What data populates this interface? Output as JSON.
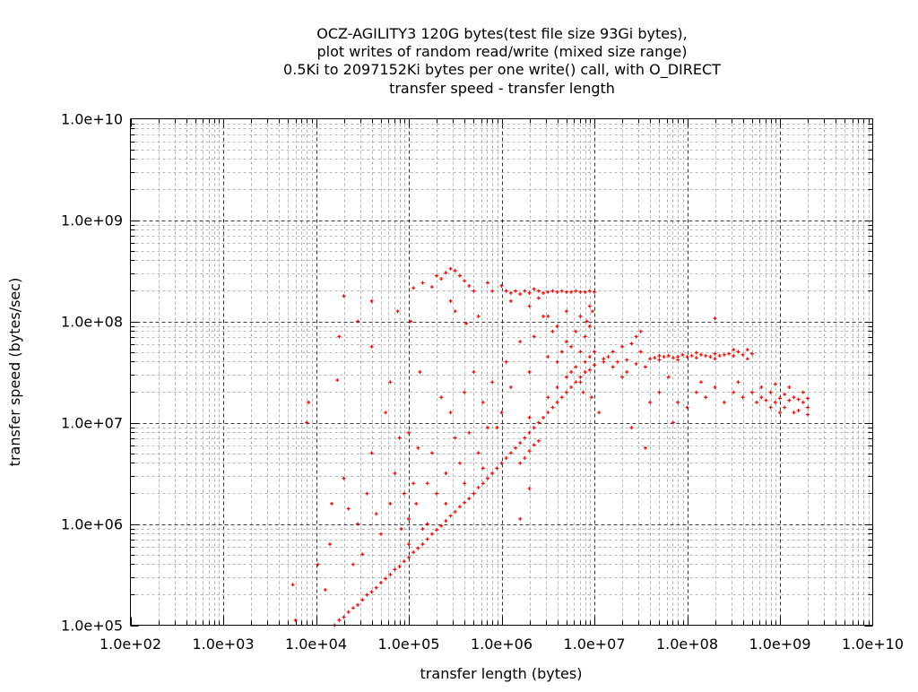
{
  "chart_data": {
    "type": "scatter",
    "title_lines": [
      "OCZ-AGILITY3 120G bytes(test file size 93Gi bytes),",
      "plot writes of random read/write (mixed size range)",
      "0.5Ki to 2097152Ki bytes per one write() call, with O_DIRECT",
      "transfer speed - transfer length"
    ],
    "xlabel": "transfer length (bytes)",
    "ylabel": "transfer speed (bytes/sec)",
    "x_scale": "log10",
    "y_scale": "log10",
    "xlim": [
      100.0,
      10000000000.0
    ],
    "ylim": [
      100000.0,
      10000000000.0
    ],
    "x_ticks": [
      "1.0e+02",
      "1.0e+03",
      "1.0e+04",
      "1.0e+05",
      "1.0e+06",
      "1.0e+07",
      "1.0e+08",
      "1.0e+09",
      "1.0e+10"
    ],
    "y_ticks": [
      "1.0e+05",
      "1.0e+06",
      "1.0e+07",
      "1.0e+08",
      "1.0e+09",
      "1.0e+10"
    ],
    "grid": true,
    "marker": "plus",
    "color": "#ff0000",
    "point_format": "[log10(transfer length), log10(transfer speed)] (approximate, sampled)",
    "points": [
      [
        4.2,
        5.0
      ],
      [
        4.3,
        5.08
      ],
      [
        4.4,
        5.17
      ],
      [
        4.5,
        5.25
      ],
      [
        4.6,
        5.33
      ],
      [
        4.7,
        5.42
      ],
      [
        4.8,
        5.5
      ],
      [
        4.9,
        5.58
      ],
      [
        5.0,
        5.67
      ],
      [
        5.1,
        5.76
      ],
      [
        5.2,
        5.85
      ],
      [
        5.3,
        5.94
      ],
      [
        5.4,
        6.03
      ],
      [
        5.5,
        6.12
      ],
      [
        5.6,
        6.21
      ],
      [
        5.7,
        6.3
      ],
      [
        5.8,
        6.4
      ],
      [
        5.9,
        6.5
      ],
      [
        6.0,
        6.6
      ],
      [
        6.1,
        6.7
      ],
      [
        6.2,
        6.8
      ],
      [
        6.3,
        6.9
      ],
      [
        6.4,
        7.0
      ],
      [
        6.5,
        7.1
      ],
      [
        6.6,
        7.2
      ],
      [
        6.7,
        7.3
      ],
      [
        6.8,
        7.4
      ],
      [
        6.9,
        7.5
      ],
      [
        7.0,
        7.57
      ],
      [
        7.1,
        7.63
      ],
      [
        4.25,
        5.05
      ],
      [
        4.35,
        5.13
      ],
      [
        4.45,
        5.2
      ],
      [
        4.55,
        5.3
      ],
      [
        4.65,
        5.37
      ],
      [
        4.75,
        5.46
      ],
      [
        4.85,
        5.55
      ],
      [
        4.95,
        5.63
      ],
      [
        5.05,
        5.72
      ],
      [
        5.15,
        5.8
      ],
      [
        5.25,
        5.9
      ],
      [
        5.35,
        5.98
      ],
      [
        5.45,
        6.08
      ],
      [
        5.55,
        6.17
      ],
      [
        5.65,
        6.25
      ],
      [
        5.75,
        6.36
      ],
      [
        5.85,
        6.45
      ],
      [
        5.95,
        6.55
      ],
      [
        6.05,
        6.65
      ],
      [
        6.15,
        6.75
      ],
      [
        6.25,
        6.85
      ],
      [
        6.35,
        6.95
      ],
      [
        6.45,
        7.05
      ],
      [
        6.55,
        7.15
      ],
      [
        6.65,
        7.25
      ],
      [
        6.75,
        7.35
      ],
      [
        6.85,
        7.45
      ],
      [
        6.95,
        7.52
      ],
      [
        5.0,
        5.8
      ],
      [
        5.2,
        6.0
      ],
      [
        5.4,
        6.2
      ],
      [
        5.6,
        6.4
      ],
      [
        5.8,
        6.55
      ],
      [
        6.3,
        7.05
      ],
      [
        6.5,
        7.25
      ],
      [
        6.6,
        7.35
      ],
      [
        6.7,
        7.45
      ],
      [
        6.8,
        7.55
      ],
      [
        6.9,
        7.6
      ],
      [
        6.75,
        7.5
      ],
      [
        6.85,
        7.4
      ],
      [
        6.95,
        7.65
      ],
      [
        6.2,
        6.6
      ],
      [
        6.25,
        6.65
      ],
      [
        6.3,
        6.72
      ],
      [
        6.35,
        6.78
      ],
      [
        6.4,
        6.82
      ],
      [
        6.6,
        7.6
      ],
      [
        6.65,
        7.7
      ],
      [
        6.7,
        7.8
      ],
      [
        6.75,
        7.75
      ],
      [
        6.8,
        7.9
      ],
      [
        6.85,
        7.7
      ],
      [
        6.9,
        7.85
      ],
      [
        6.95,
        7.95
      ],
      [
        7.0,
        7.7
      ],
      [
        6.98,
        8.1
      ],
      [
        6.92,
        8.0
      ],
      [
        6.88,
        7.3
      ],
      [
        6.97,
        7.25
      ],
      [
        6.0,
        8.35
      ],
      [
        6.05,
        8.3
      ],
      [
        6.1,
        8.28
      ],
      [
        6.15,
        8.3
      ],
      [
        6.2,
        8.27
      ],
      [
        6.25,
        8.3
      ],
      [
        6.3,
        8.28
      ],
      [
        6.35,
        8.32
      ],
      [
        6.4,
        8.3
      ],
      [
        6.45,
        8.28
      ],
      [
        6.5,
        8.29
      ],
      [
        6.55,
        8.3
      ],
      [
        6.6,
        8.29
      ],
      [
        6.65,
        8.3
      ],
      [
        6.7,
        8.29
      ],
      [
        6.75,
        8.29
      ],
      [
        6.8,
        8.3
      ],
      [
        6.85,
        8.29
      ],
      [
        6.9,
        8.29
      ],
      [
        6.95,
        8.3
      ],
      [
        7.0,
        8.29
      ],
      [
        6.1,
        8.2
      ],
      [
        6.3,
        8.15
      ],
      [
        6.5,
        8.05
      ],
      [
        6.6,
        7.95
      ],
      [
        6.7,
        8.1
      ],
      [
        6.85,
        8.05
      ],
      [
        6.95,
        8.15
      ],
      [
        6.4,
        8.23
      ],
      [
        5.05,
        8.33
      ],
      [
        5.15,
        8.38
      ],
      [
        5.25,
        8.34
      ],
      [
        5.3,
        8.45
      ],
      [
        5.35,
        8.42
      ],
      [
        5.4,
        8.48
      ],
      [
        5.45,
        8.52
      ],
      [
        5.5,
        8.5
      ],
      [
        5.55,
        8.45
      ],
      [
        5.6,
        8.4
      ],
      [
        5.65,
        8.35
      ],
      [
        5.7,
        8.3
      ],
      [
        5.5,
        8.1
      ],
      [
        5.45,
        8.2
      ],
      [
        5.62,
        7.98
      ],
      [
        5.75,
        8.05
      ],
      [
        5.85,
        8.38
      ],
      [
        5.9,
        8.3
      ],
      [
        7.1,
        7.6
      ],
      [
        7.15,
        7.65
      ],
      [
        7.2,
        7.7
      ],
      [
        7.25,
        7.6
      ],
      [
        7.3,
        7.75
      ],
      [
        7.35,
        7.62
      ],
      [
        7.4,
        7.78
      ],
      [
        7.45,
        7.58
      ],
      [
        7.5,
        7.7
      ],
      [
        7.55,
        7.55
      ],
      [
        7.6,
        7.63
      ],
      [
        7.65,
        7.64
      ],
      [
        7.7,
        7.66
      ],
      [
        7.75,
        7.65
      ],
      [
        7.8,
        7.66
      ],
      [
        7.85,
        7.64
      ],
      [
        7.9,
        7.65
      ],
      [
        7.95,
        7.67
      ],
      [
        8.0,
        7.65
      ],
      [
        8.05,
        7.66
      ],
      [
        8.1,
        7.64
      ],
      [
        8.15,
        7.67
      ],
      [
        8.2,
        7.66
      ],
      [
        8.25,
        7.65
      ],
      [
        8.3,
        7.68
      ],
      [
        8.35,
        7.66
      ],
      [
        8.4,
        7.67
      ],
      [
        8.45,
        7.68
      ],
      [
        8.5,
        7.66
      ],
      [
        8.55,
        7.7
      ],
      [
        8.6,
        7.67
      ],
      [
        8.65,
        7.72
      ],
      [
        8.7,
        7.68
      ],
      [
        7.7,
        7.62
      ],
      [
        7.9,
        7.62
      ],
      [
        8.1,
        7.69
      ],
      [
        8.3,
        7.63
      ],
      [
        8.5,
        7.72
      ],
      [
        8.65,
        7.63
      ],
      [
        7.35,
        7.5
      ],
      [
        7.45,
        7.85
      ],
      [
        7.3,
        7.45
      ],
      [
        7.2,
        7.55
      ],
      [
        8.3,
        8.03
      ],
      [
        7.5,
        7.9
      ],
      [
        8.7,
        7.3
      ],
      [
        8.75,
        7.2
      ],
      [
        8.8,
        7.25
      ],
      [
        8.85,
        7.22
      ],
      [
        8.9,
        7.3
      ],
      [
        8.95,
        7.2
      ],
      [
        9.0,
        7.24
      ],
      [
        9.05,
        7.28
      ],
      [
        9.1,
        7.22
      ],
      [
        9.15,
        7.25
      ],
      [
        9.2,
        7.23
      ],
      [
        9.25,
        7.2
      ],
      [
        9.3,
        7.24
      ],
      [
        8.8,
        7.35
      ],
      [
        8.9,
        7.15
      ],
      [
        9.0,
        7.1
      ],
      [
        9.1,
        7.35
      ],
      [
        9.2,
        7.12
      ],
      [
        9.3,
        7.08
      ],
      [
        9.25,
        7.3
      ],
      [
        9.05,
        7.15
      ],
      [
        8.95,
        7.38
      ],
      [
        9.15,
        7.1
      ],
      [
        9.3,
        7.15
      ],
      [
        7.9,
        7.2
      ],
      [
        8.0,
        7.15
      ],
      [
        8.1,
        7.3
      ],
      [
        8.2,
        7.25
      ],
      [
        8.3,
        7.35
      ],
      [
        8.4,
        7.2
      ],
      [
        8.5,
        7.3
      ],
      [
        8.6,
        7.25
      ],
      [
        7.7,
        7.3
      ],
      [
        7.6,
        7.2
      ],
      [
        7.85,
        7.0
      ],
      [
        7.8,
        7.45
      ],
      [
        8.15,
        7.4
      ],
      [
        8.55,
        7.4
      ],
      [
        7.4,
        6.95
      ],
      [
        7.55,
        6.75
      ],
      [
        3.78,
        5.05
      ],
      [
        3.75,
        5.4
      ],
      [
        3.9,
        7.0
      ],
      [
        3.92,
        7.2
      ],
      [
        4.02,
        5.6
      ],
      [
        4.1,
        5.35
      ],
      [
        4.15,
        5.8
      ],
      [
        4.17,
        6.2
      ],
      [
        4.23,
        7.42
      ],
      [
        4.3,
        6.45
      ],
      [
        4.35,
        6.15
      ],
      [
        4.4,
        5.6
      ],
      [
        4.45,
        6.0
      ],
      [
        4.5,
        5.7
      ],
      [
        4.55,
        6.3
      ],
      [
        4.6,
        6.7
      ],
      [
        4.6,
        7.75
      ],
      [
        4.65,
        6.1
      ],
      [
        4.7,
        5.9
      ],
      [
        4.75,
        7.1
      ],
      [
        4.8,
        6.2
      ],
      [
        4.8,
        7.4
      ],
      [
        4.85,
        6.5
      ],
      [
        4.88,
        8.1
      ],
      [
        4.9,
        6.85
      ],
      [
        4.92,
        5.95
      ],
      [
        4.95,
        6.3
      ],
      [
        5.0,
        6.05
      ],
      [
        5.0,
        6.9
      ],
      [
        5.02,
        8.0
      ],
      [
        5.05,
        6.4
      ],
      [
        5.08,
        6.2
      ],
      [
        5.1,
        6.75
      ],
      [
        5.12,
        7.5
      ],
      [
        5.15,
        5.95
      ],
      [
        5.2,
        6.4
      ],
      [
        5.25,
        6.7
      ],
      [
        5.3,
        6.3
      ],
      [
        5.35,
        7.25
      ],
      [
        5.4,
        6.5
      ],
      [
        5.45,
        7.1
      ],
      [
        5.5,
        6.85
      ],
      [
        5.55,
        6.6
      ],
      [
        5.6,
        7.3
      ],
      [
        5.65,
        6.9
      ],
      [
        5.7,
        7.5
      ],
      [
        5.75,
        6.7
      ],
      [
        5.8,
        7.2
      ],
      [
        5.85,
        6.95
      ],
      [
        5.9,
        7.4
      ],
      [
        5.95,
        6.95
      ],
      [
        6.0,
        7.1
      ],
      [
        6.05,
        7.6
      ],
      [
        6.1,
        7.35
      ],
      [
        6.2,
        7.8
      ],
      [
        6.3,
        7.5
      ],
      [
        6.35,
        7.85
      ],
      [
        6.45,
        8.05
      ],
      [
        6.5,
        7.65
      ],
      [
        6.55,
        7.9
      ],
      [
        4.45,
        8.0
      ],
      [
        4.6,
        8.2
      ],
      [
        4.3,
        8.25
      ],
      [
        4.25,
        7.85
      ],
      [
        7.05,
        7.1
      ],
      [
        6.2,
        6.05
      ],
      [
        6.3,
        6.35
      ]
    ]
  }
}
